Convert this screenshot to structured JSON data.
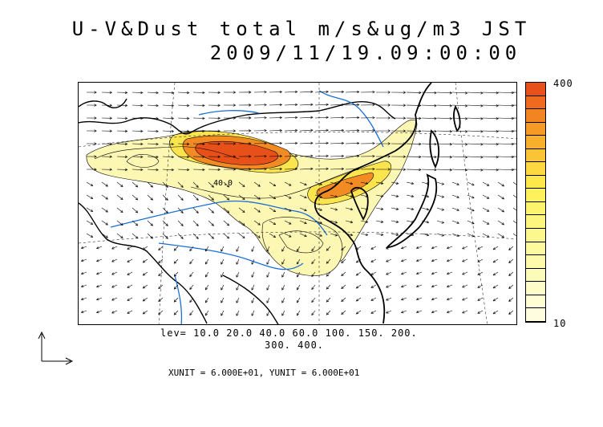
{
  "title": {
    "line1": "U-V&Dust total m/s&ug/m3 JST",
    "line2": "2009/11/19.09:00:00"
  },
  "colorbar": {
    "max_label": "400",
    "min_label": "10",
    "colors": [
      "#e8501a",
      "#ef6a1e",
      "#f28422",
      "#f59a26",
      "#f8b02c",
      "#fac436",
      "#fdd840",
      "#fde84c",
      "#fdf25c",
      "#fdf46e",
      "#fdf67e",
      "#fdf88e",
      "#fdf99e",
      "#fdfaac",
      "#fdfbba",
      "#fefcc8",
      "#fefdd4",
      "#fefde0"
    ]
  },
  "levels": {
    "line1": "lev= 10.0 20.0 40.0 60.0 100. 150. 200.",
    "line2": "300. 400."
  },
  "units": "XUNIT = 6.000E+01, YUNIT = 6.000E+01",
  "map": {
    "contour_labels": [
      "40.0"
    ],
    "colors": {
      "land_outline": "#000000",
      "rivers": "#1a6fd6",
      "dust_low": "#fdf7b4",
      "dust_mid": "#fbe54e",
      "dust_high": "#f28b23",
      "dust_peak": "#e8501a"
    }
  }
}
